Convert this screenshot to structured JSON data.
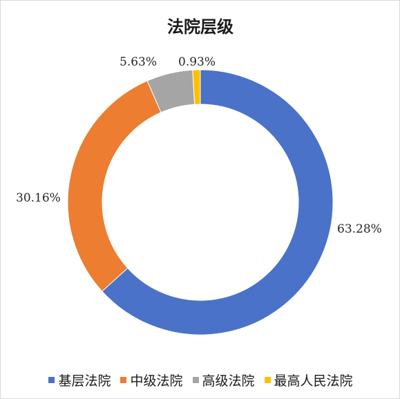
{
  "chart_data": {
    "type": "pie",
    "donut": true,
    "title": "法院层级",
    "categories": [
      "基层法院",
      "中级法院",
      "高级法院",
      "最高人民法院"
    ],
    "values": [
      63.28,
      30.16,
      5.63,
      0.93
    ],
    "data_labels": [
      "63.28%",
      "30.16%",
      "5.63%",
      "0.93%"
    ],
    "colors": [
      "#4A72C8",
      "#ED7D31",
      "#A5A5A5",
      "#FFC000"
    ],
    "legend_position": "bottom"
  }
}
